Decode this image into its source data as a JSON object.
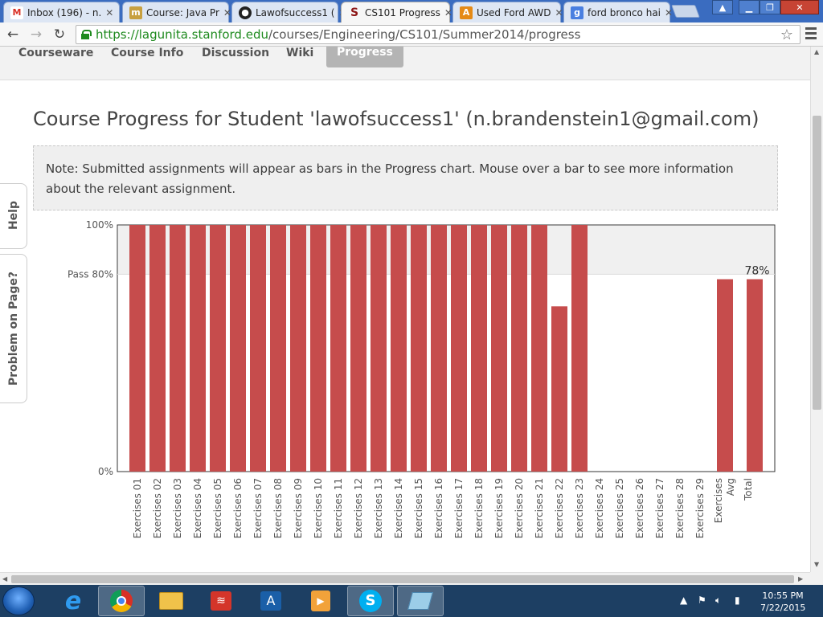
{
  "browser": {
    "tabs": [
      {
        "title": "Inbox (196) - n.",
        "icon": "gmail-icon",
        "active": false
      },
      {
        "title": "Course: Java Pr",
        "icon": "course-icon",
        "active": false
      },
      {
        "title": "Lawofsuccess1 (",
        "icon": "github-icon",
        "active": false
      },
      {
        "title": "CS101 Progress",
        "icon": "stanford-icon",
        "active": true
      },
      {
        "title": "Used Ford AWD",
        "icon": "autotrader-icon",
        "active": false
      },
      {
        "title": "ford bronco hai",
        "icon": "google-icon",
        "active": false
      }
    ],
    "url_host": "https://lagunita.stanford.edu",
    "url_path": "/courses/Engineering/CS101/Summer2014/progress"
  },
  "course_nav": {
    "items": [
      "Courseware",
      "Course Info",
      "Discussion",
      "Wiki",
      "Progress"
    ],
    "active": "Progress"
  },
  "page": {
    "title": "Course Progress for Student 'lawofsuccess1' (n.brandenstein1@gmail.com)",
    "note": "Note: Submitted assignments will appear as bars in the Progress chart. Mouse over a bar to see more information about the relevant assignment."
  },
  "side_tabs": {
    "help": "Help",
    "problem": "Problem on Page?"
  },
  "chart_data": {
    "type": "bar",
    "categories": [
      "Exercises 01",
      "Exercises 02",
      "Exercises 03",
      "Exercises 04",
      "Exercises 05",
      "Exercises 06",
      "Exercises 07",
      "Exercises 08",
      "Exercises 09",
      "Exercises 10",
      "Exercises 11",
      "Exercises 12",
      "Exercises 13",
      "Exercises 14",
      "Exercises 15",
      "Exercises 16",
      "Exercises 17",
      "Exercises 18",
      "Exercises 19",
      "Exercises 20",
      "Exercises 21",
      "Exercises 22",
      "Exercises 23",
      "Exercises 24",
      "Exercises 25",
      "Exercises 26",
      "Exercises 27",
      "Exercises 28",
      "Exercises 29"
    ],
    "values": [
      100,
      100,
      100,
      100,
      100,
      100,
      100,
      100,
      100,
      100,
      100,
      100,
      100,
      100,
      100,
      100,
      100,
      100,
      100,
      100,
      100,
      67,
      100,
      0,
      0,
      0,
      0,
      0,
      0
    ],
    "summary": [
      {
        "label": "Exercises Avg",
        "value": 78
      },
      {
        "label": "Total",
        "value": 78
      }
    ],
    "total_label": "78%",
    "ylim": [
      0,
      100
    ],
    "y_ticks": [
      {
        "value": 100,
        "label": "100%"
      },
      {
        "value": 80,
        "label": "Pass 80%"
      },
      {
        "value": 0,
        "label": "0%"
      }
    ],
    "pass_threshold": 80,
    "bar_color": "#c64c4c"
  },
  "taskbar": {
    "time": "10:55 PM",
    "date": "7/22/2015",
    "apps": [
      "ie-icon",
      "chrome-icon",
      "explorer-icon",
      "todoist-icon",
      "acrobat-icon",
      "media-icon",
      "skype-icon",
      "notepad-icon"
    ]
  }
}
